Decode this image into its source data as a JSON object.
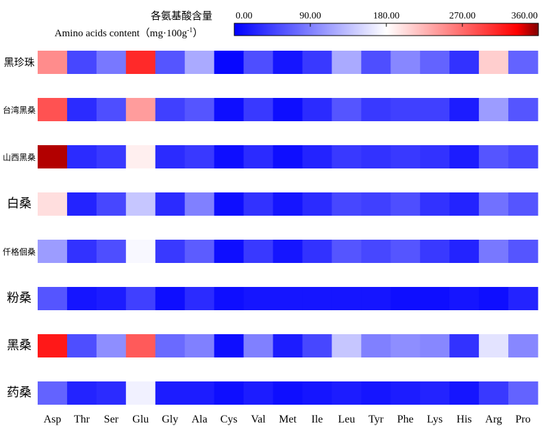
{
  "chart_data": {
    "type": "heatmap",
    "title": "各氨基酸含量",
    "legend_label": "Amino acids content（mg·100g",
    "legend_label_sup": "-1",
    "legend_label_end": "）",
    "colorbar_ticks": [
      "0.00",
      "90.00",
      "180.00",
      "270.00",
      "360.00"
    ],
    "value_range": [
      0,
      360
    ],
    "colors": {
      "low": "#0000ff",
      "mid": "#ffffff",
      "high": "#ff0000",
      "max": "#7f0000"
    },
    "columns": [
      "Asp",
      "Thr",
      "Ser",
      "Glu",
      "Gly",
      "Ala",
      "Cys",
      "Val",
      "Met",
      "Ile",
      "Leu",
      "Tyr",
      "Phe",
      "Lys",
      "His",
      "Arg",
      "Pro"
    ],
    "rows": [
      {
        "name": "黑珍珠",
        "values": [
          250,
          50,
          85,
          310,
          60,
          120,
          5,
          55,
          15,
          40,
          120,
          55,
          95,
          70,
          35,
          210,
          70
        ]
      },
      {
        "name": "台湾黑桑",
        "values": [
          285,
          30,
          55,
          240,
          45,
          60,
          10,
          40,
          10,
          30,
          60,
          40,
          45,
          45,
          20,
          110,
          60
        ]
      },
      {
        "name": "山西黑桑",
        "values": [
          350,
          30,
          40,
          190,
          30,
          40,
          10,
          30,
          10,
          25,
          40,
          35,
          40,
          35,
          20,
          60,
          50
        ]
      },
      {
        "name": "白桑",
        "values": [
          200,
          25,
          50,
          140,
          30,
          90,
          10,
          35,
          15,
          30,
          50,
          45,
          55,
          35,
          25,
          80,
          60
        ]
      },
      {
        "name": "仟格佪桑",
        "values": [
          110,
          35,
          55,
          175,
          40,
          65,
          10,
          40,
          15,
          35,
          60,
          50,
          60,
          40,
          25,
          85,
          60
        ]
      },
      {
        "name": "粉桑",
        "values": [
          60,
          15,
          20,
          45,
          10,
          30,
          10,
          15,
          15,
          15,
          15,
          15,
          10,
          10,
          15,
          10,
          25
        ]
      },
      {
        "name": "黑桑",
        "values": [
          320,
          55,
          100,
          280,
          75,
          90,
          10,
          90,
          20,
          50,
          140,
          90,
          100,
          95,
          35,
          160,
          95
        ]
      },
      {
        "name": "药桑",
        "values": [
          70,
          25,
          30,
          170,
          20,
          20,
          10,
          20,
          10,
          15,
          20,
          15,
          20,
          25,
          15,
          40,
          70
        ]
      }
    ]
  }
}
